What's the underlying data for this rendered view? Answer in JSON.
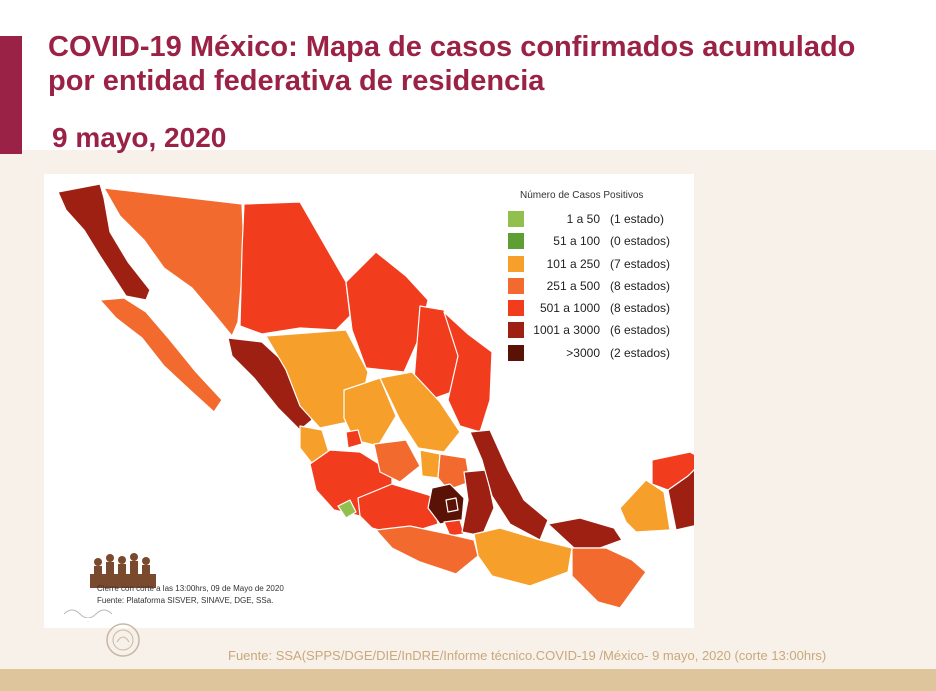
{
  "header": {
    "title": "COVID-19 México: Mapa de casos confirmados acumulado\npor entidad federativa de residencia",
    "date": "9 mayo, 2020"
  },
  "legend": {
    "title": "Número de Casos Positivos",
    "items": [
      {
        "range": "1 a 50",
        "count": "(1 estado)",
        "color": "#92c04f"
      },
      {
        "range": "51 a 100",
        "count": "(0 estados)",
        "color": "#5f9e33"
      },
      {
        "range": "101 a 250",
        "count": "(7 estados)",
        "color": "#f6a02b"
      },
      {
        "range": "251 a 500",
        "count": "(8 estados)",
        "color": "#f26a2e"
      },
      {
        "range": "501 a 1000",
        "count": "(8 estados)",
        "color": "#f23c1e"
      },
      {
        "range": "1001 a 3000",
        "count": "(6 estados)",
        "color": "#9e2012"
      },
      {
        "range": ">3000",
        "count": "(2 estados)",
        "color": "#5a1206"
      }
    ]
  },
  "notes": {
    "cutoff": "Cierre con corte a las 13:00hrs, 09 de Mayo de 2020",
    "source_small": "Fuente: Plataforma SISVER, SINAVE, DGE, SSa."
  },
  "footer": {
    "source": "Fuente: SSA(SPPS/DGE/DIE/InDRE/Informe técnico.COVID-19 /México- 9 mayo, 2020 (corte 13:00hrs)"
  }
}
